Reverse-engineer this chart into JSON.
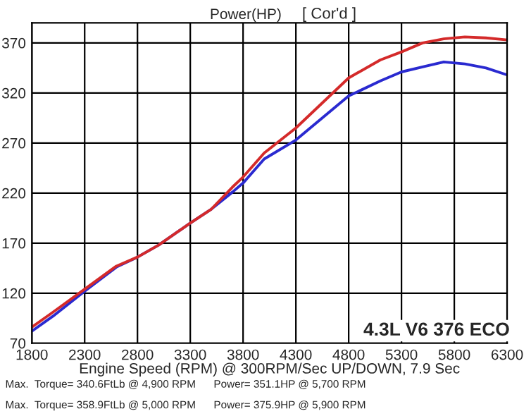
{
  "chart_data": {
    "type": "line",
    "title": "Power(HP)",
    "xlabel": "Engine Speed (RPM) @ 300RPM/Sec UP/DOWN, 7.9 Sec",
    "x": [
      1800,
      2000,
      2300,
      2600,
      2800,
      3000,
      3300,
      3500,
      3700,
      3800,
      4000,
      4300,
      4800,
      5100,
      5300,
      5500,
      5700,
      5900,
      6100,
      6300
    ],
    "series": [
      {
        "color": "#2a2ad0",
        "values": [
          82,
          97,
          122,
          146,
          156,
          168,
          190,
          204,
          221,
          230,
          254,
          273,
          317,
          332,
          341,
          346,
          351,
          349,
          345,
          338
        ]
      },
      {
        "color": "#d42a2a",
        "values": [
          86,
          101,
          124,
          147,
          156,
          168,
          190,
          204,
          226,
          236,
          260,
          285,
          335,
          353,
          361,
          370,
          374,
          376,
          375,
          373
        ]
      }
    ],
    "xlim": [
      1800,
      6300
    ],
    "xticks": [
      1800,
      2300,
      2800,
      3300,
      3800,
      4300,
      4800,
      5300,
      5800,
      6300
    ],
    "ylim": [
      70,
      390
    ],
    "yticks": [
      70,
      120,
      170,
      220,
      270,
      320,
      370
    ],
    "grid": true,
    "marker": "none",
    "line_style": "solid",
    "annotations": [
      "[ Cor'd ]",
      "4.3L V6 376 ECO",
      "Max.  Torque= 340.6FtLb @ 4,900 RPM      Power= 351.1HP @ 5,700 RPM",
      "Max.  Torque= 358.9FtLb @ 5,000 RPM      Power= 375.9HP @ 5,900 RPM"
    ]
  }
}
